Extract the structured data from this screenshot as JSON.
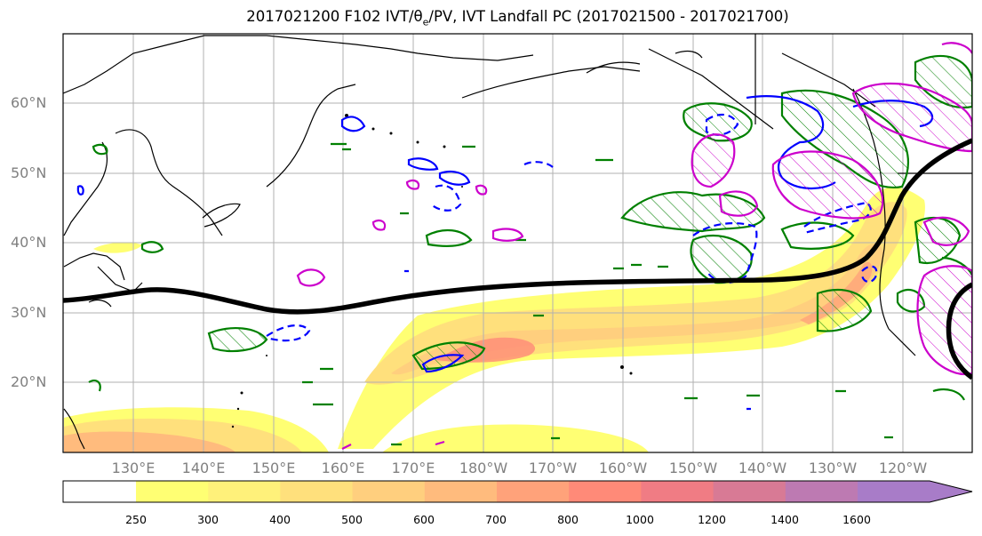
{
  "figure": {
    "title_prefix": "2017021200 F102 IVT/θ",
    "title_sub": "e",
    "title_suffix": "/PV, IVT Landfall PC (2017021500 - 2017021700)"
  },
  "lat_labels": [
    "60°N",
    "50°N",
    "40°N",
    "30°N",
    "20°N"
  ],
  "lon_labels": [
    "130°E",
    "140°E",
    "150°E",
    "160°E",
    "170°E",
    "180°W",
    "170°W",
    "160°W",
    "150°W",
    "140°W",
    "130°W",
    "120°W"
  ],
  "colorbar": {
    "labels": [
      "250",
      "300",
      "400",
      "500",
      "600",
      "700",
      "800",
      "1000",
      "1200",
      "1400",
      "1600"
    ],
    "colors": [
      "#ffff73",
      "#fff17a",
      "#ffe07c",
      "#ffcf7e",
      "#ffbb7d",
      "#ffa27a",
      "#ff8a78",
      "#f07c84",
      "#d87a95",
      "#bd7ab2",
      "#a87cc8"
    ]
  },
  "legend_colors": {
    "ivt_shading": "#ffe07c",
    "pv_contour": "#008000",
    "theta_e_contour_dashed": "#0000ff",
    "theta_e_contour_solid": "#0000ff",
    "landfall_contour": "#cc00cc",
    "trajectory_line": "#000000"
  }
}
